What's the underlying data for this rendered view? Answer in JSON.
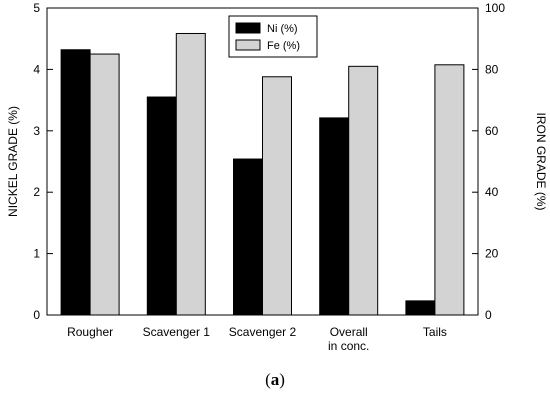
{
  "chart_data": {
    "type": "bar",
    "categories": [
      [
        "Rougher"
      ],
      [
        "Scavenger 1"
      ],
      [
        "Scavenger 2"
      ],
      [
        "Overall",
        "in conc."
      ],
      [
        "Tails"
      ]
    ],
    "series": [
      {
        "name": "Ni (%)",
        "axis": "left",
        "color": "#000000",
        "values": [
          4.32,
          3.55,
          2.54,
          3.21,
          0.23
        ]
      },
      {
        "name": "Fe (%)",
        "axis": "right",
        "color": "#d3d3d3",
        "values": [
          85.0,
          91.7,
          77.6,
          81.0,
          81.5
        ]
      }
    ],
    "ylabel": "NICKEL GRADE (%)",
    "y2label": "IRON GRADE (%)",
    "ylim": [
      0,
      5
    ],
    "y2lim": [
      0,
      100
    ],
    "yticks": [
      "0",
      "1",
      "2",
      "3",
      "4",
      "5"
    ],
    "y2ticks": [
      "0",
      "20",
      "40",
      "60",
      "80",
      "100"
    ],
    "legend_position": "top-center",
    "grid": false
  },
  "panel_label": {
    "open": "(",
    "letter": "a",
    "close": ")"
  }
}
